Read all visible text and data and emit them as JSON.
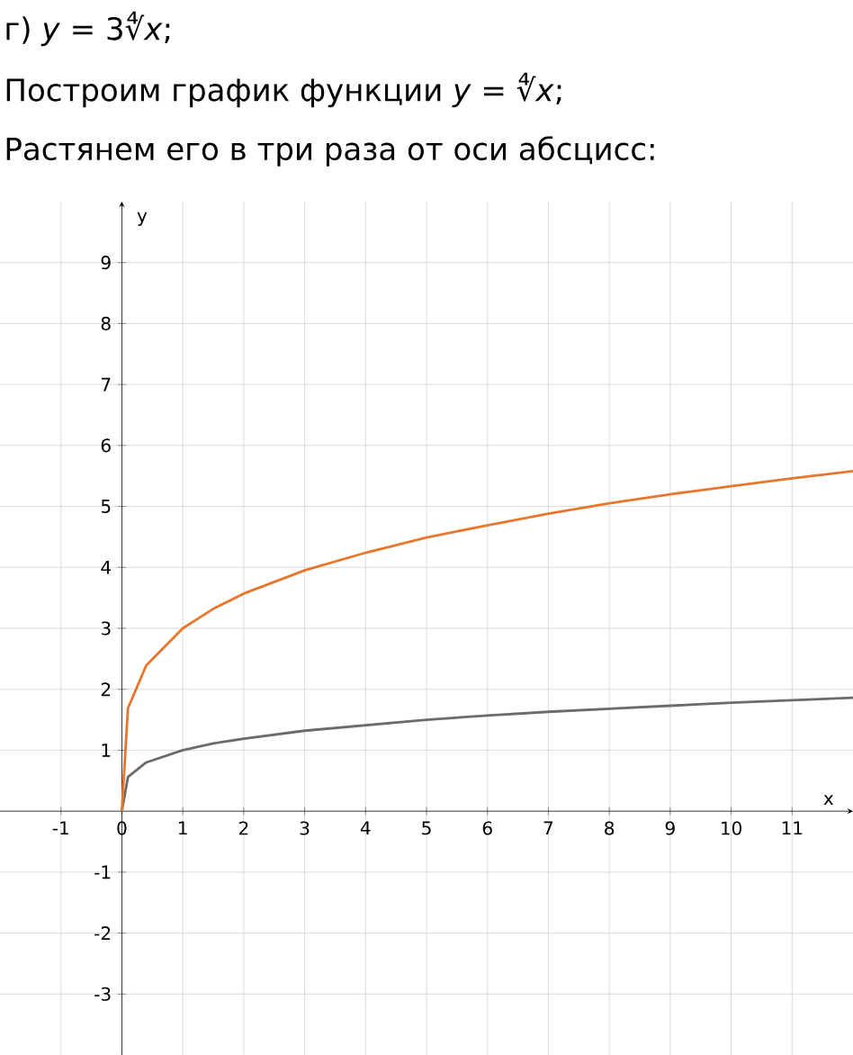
{
  "chart_data": {
    "type": "line",
    "title": "г) *y* = 3∜*x*;",
    "subtitle": "Построим график функции *y* = ∜*x*;",
    "annotations": [
      "Растянем его в три раза от оси абсцисс:"
    ],
    "xlabel": "x",
    "ylabel": "y",
    "x": [
      0,
      0.1,
      0.4,
      1,
      1.5,
      2,
      3,
      4,
      5,
      6,
      7,
      8,
      9,
      10,
      11,
      12
    ],
    "series": [
      {
        "color": "#6b6b6b",
        "values": [
          0,
          0.56,
          0.8,
          1,
          1.11,
          1.19,
          1.32,
          1.41,
          1.5,
          1.57,
          1.63,
          1.68,
          1.73,
          1.78,
          1.82,
          1.86
        ]
      },
      {
        "color": "#e8772e",
        "values": [
          0,
          1.69,
          2.39,
          3,
          3.32,
          3.57,
          3.95,
          4.24,
          4.49,
          4.69,
          4.88,
          5.05,
          5.2,
          5.33,
          5.46,
          5.58
        ]
      }
    ],
    "xlim": [
      -2,
      12
    ],
    "ylim": [
      -4,
      10
    ],
    "xticks": [
      -1,
      0,
      1,
      2,
      3,
      4,
      5,
      6,
      7,
      8,
      9,
      10,
      11
    ],
    "yticks": [
      -3,
      -2,
      -1,
      1,
      2,
      3,
      4,
      5,
      6,
      7,
      8,
      9
    ],
    "grid": true
  }
}
